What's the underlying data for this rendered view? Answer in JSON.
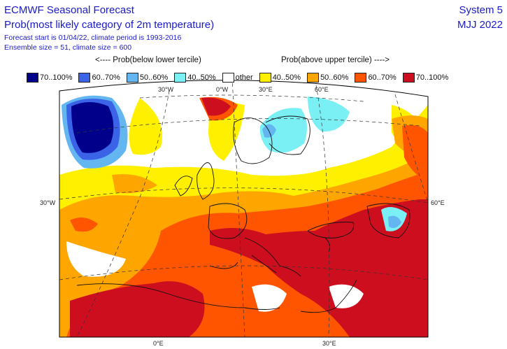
{
  "header": {
    "title": "ECMWF Seasonal Forecast",
    "subtitle": "Prob(most likely category of 2m temperature)",
    "forecast_info": "Forecast start is 01/04/22, climate period is 1993-2016",
    "ensemble_info": "Ensemble size = 51, climate size = 600",
    "system": "System 5",
    "period": "MJJ 2022"
  },
  "legend": {
    "below_header": "<---- Prob(below lower tercile)",
    "above_header": "Prob(above upper tercile) ---->",
    "items": [
      {
        "label": "70..100%",
        "color": "#00008b"
      },
      {
        "label": "60..70%",
        "color": "#3a63e8"
      },
      {
        "label": "50..60%",
        "color": "#63b6f0"
      },
      {
        "label": "40..50%",
        "color": "#7af0f5"
      },
      {
        "label": "other",
        "color": "#ffffff"
      },
      {
        "label": "40..50%",
        "color": "#fff000"
      },
      {
        "label": "50..60%",
        "color": "#ffa500"
      },
      {
        "label": "60..70%",
        "color": "#ff5500"
      },
      {
        "label": "70..100%",
        "color": "#cc0e1e"
      }
    ]
  },
  "grid_labels": {
    "top": [
      "30°W",
      "0°W",
      "30°E",
      "60°E"
    ],
    "left": "30°W",
    "right": "60°E",
    "bottom": [
      "0°E",
      "30°E"
    ]
  }
}
